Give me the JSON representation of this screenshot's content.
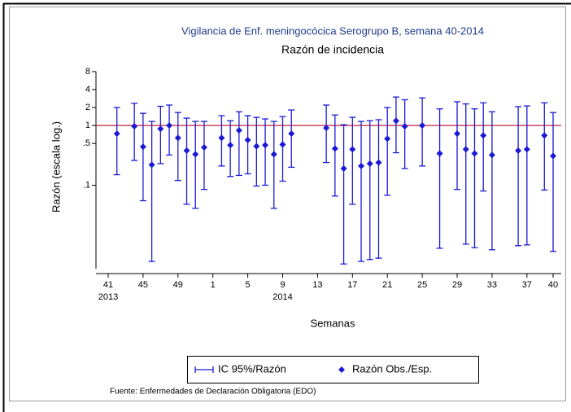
{
  "chart_data": {
    "type": "errorbar",
    "title": "Vigilancia de Enf. meningocócica Serogrupo B, semana 40-2014",
    "subtitle": "Razón de incidencia",
    "x_label": "Semanas",
    "y_label": "Razón (escala log.)",
    "note": "Fuente: Enfermedades de Declaración Obligatoria (EDO)",
    "categories": [
      "41",
      null,
      null,
      null,
      "45",
      null,
      null,
      null,
      "49",
      null,
      null,
      null,
      "1",
      null,
      null,
      null,
      "5",
      null,
      null,
      null,
      "9",
      null,
      null,
      null,
      "13",
      null,
      null,
      null,
      "17",
      null,
      null,
      null,
      "21",
      null,
      null,
      null,
      "25",
      null,
      null,
      null,
      "29",
      null,
      null,
      null,
      "33",
      null,
      null,
      null,
      "37",
      null,
      null,
      "40"
    ],
    "category_years": [
      "2013",
      null,
      null,
      null,
      null,
      null,
      null,
      null,
      null,
      null,
      null,
      null,
      null,
      null,
      null,
      null,
      null,
      null,
      null,
      null,
      "2014",
      null,
      null,
      null,
      null,
      null,
      null,
      null,
      null,
      null,
      null,
      null,
      null,
      null,
      null,
      null,
      null,
      null,
      null,
      null,
      null,
      null,
      null,
      null,
      null,
      null,
      null,
      null,
      null,
      null,
      null,
      null
    ],
    "series": [
      {
        "name": "IC 95%/Razón",
        "color": "#1a1ad6",
        "low": [
          null,
          0.15,
          null,
          0.26,
          0.055,
          0.0053,
          0.23,
          0.32,
          0.12,
          0.048,
          0.041,
          0.085,
          null,
          0.21,
          0.14,
          0.146,
          0.155,
          0.097,
          0.1,
          0.041,
          0.117,
          0.2,
          null,
          null,
          null,
          0.24,
          0.066,
          0.0048,
          0.048,
          0.0053,
          0.0057,
          0.006,
          0.068,
          0.35,
          0.19,
          null,
          0.21,
          null,
          0.0088,
          null,
          0.085,
          0.0103,
          0.009,
          0.08,
          0.0083,
          null,
          null,
          0.0097,
          0.01,
          null,
          0.083,
          0.0078
        ],
        "high": [
          null,
          2.0,
          null,
          2.35,
          1.6,
          1.17,
          2.1,
          2.2,
          1.65,
          1.33,
          1.17,
          1.17,
          null,
          1.46,
          1.2,
          1.7,
          1.46,
          1.37,
          1.29,
          1.17,
          1.41,
          1.82,
          null,
          null,
          null,
          2.2,
          1.5,
          1.03,
          1.37,
          1.17,
          1.2,
          1.25,
          2.0,
          3.0,
          2.7,
          null,
          2.9,
          null,
          1.9,
          null,
          2.5,
          2.3,
          1.9,
          2.4,
          1.7,
          null,
          null,
          2.07,
          2.13,
          null,
          2.4,
          1.65
        ]
      },
      {
        "name": "Razón Obs./Esp.",
        "color": "#1a1ad6",
        "values": [
          null,
          0.73,
          null,
          0.97,
          0.44,
          0.22,
          0.88,
          1.0,
          0.62,
          0.38,
          0.33,
          0.43,
          null,
          0.62,
          0.47,
          0.83,
          0.57,
          0.45,
          0.47,
          0.33,
          0.48,
          0.73,
          null,
          null,
          null,
          0.91,
          0.41,
          0.19,
          0.4,
          0.21,
          0.23,
          0.24,
          0.6,
          1.2,
          0.97,
          null,
          1.0,
          null,
          0.34,
          null,
          0.73,
          0.4,
          0.34,
          0.68,
          0.32,
          null,
          null,
          0.38,
          0.4,
          null,
          0.68,
          0.31
        ]
      }
    ],
    "ylim": [
      0.004,
      12
    ],
    "yticks": [
      8,
      4,
      2,
      1,
      {
        "value": 0.5,
        "label": ".5"
      },
      {
        "value": 0.1,
        "label": ".1"
      }
    ],
    "log_y": true,
    "reference_line": {
      "value": 1,
      "color": "#c81e3c"
    }
  }
}
